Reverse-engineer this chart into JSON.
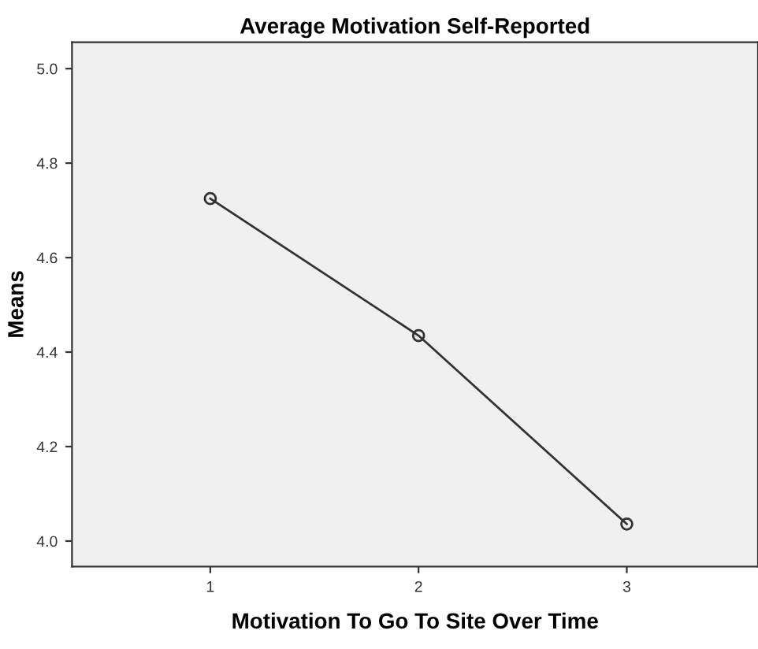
{
  "chart_data": {
    "type": "line",
    "title": "Average Motivation Self-Reported",
    "xlabel": "Motivation To Go To Site Over Time",
    "ylabel": "Means",
    "categories": [
      "1",
      "2",
      "3"
    ],
    "series": [
      {
        "color": "#333333",
        "values": [
          4.725,
          4.435,
          4.036
        ]
      }
    ],
    "ylim": [
      3.946,
      5.056
    ],
    "yticks": [
      {
        "value": 4.0,
        "label": "4.0"
      },
      {
        "value": 4.2,
        "label": "4.2"
      },
      {
        "value": 4.4,
        "label": "4.4"
      },
      {
        "value": 4.6,
        "label": "4.6"
      },
      {
        "value": 4.8,
        "label": "4.8"
      },
      {
        "value": 5.0,
        "label": "5.0"
      }
    ],
    "marker": "circle",
    "line_style": "solid",
    "grid": false,
    "legend": false
  }
}
